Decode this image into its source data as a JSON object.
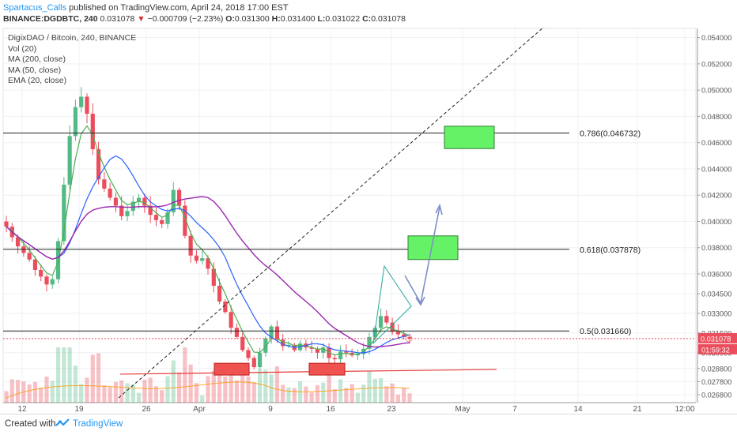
{
  "header": {
    "author": "Spartacus_Calls",
    "published": "published on TradingView.com, April 24, 2018 17:00 EST",
    "symbol": "BINANCE:DGDBTC, 240",
    "last": "0.031078",
    "change": "−0.000709 (−2.23%)",
    "o_label": "O:",
    "o": "0.031300",
    "h_label": "H:",
    "h": "0.031400",
    "l_label": "L:",
    "l": "0.031022",
    "c_label": "C:",
    "c": "0.031078"
  },
  "legend": {
    "title": "DigixDAO / Bitcoin, 240, BINANCE",
    "items": [
      "Vol (20)",
      "MA (200, close)",
      "MA (50, close)",
      "EMA (20, close)"
    ]
  },
  "footer": {
    "created_with": "Created with",
    "brand": "TradingView"
  },
  "colors": {
    "up": "#53b987",
    "down": "#eb4d5c",
    "ma200": "#9c27b0",
    "ma50": "#2962ff",
    "ema20": "#4caf50",
    "vol_ma": "#ff9800",
    "green_box": "#66f266",
    "red_box": "#ef5350",
    "arrow": "#7e8fc9"
  },
  "chart_data": {
    "type": "candlestick",
    "ylim": [
      0.0262,
      0.0547
    ],
    "x_tick_labels": [
      "12",
      "19",
      "26",
      "Apr",
      "9",
      "16",
      "23",
      "May",
      "7",
      "14",
      "21",
      "12:00"
    ],
    "y_tick_labels": [
      "0.054000",
      "0.052000",
      "0.050000",
      "0.048000",
      "0.046000",
      "0.044000",
      "0.042000",
      "0.040000",
      "0.038000",
      "0.036000",
      "0.034500",
      "0.033000",
      "0.031500",
      "0.030000",
      "0.028800",
      "0.027800",
      "0.026800"
    ],
    "current_price_label": "0.031078",
    "countdown_label": "01:59:32",
    "fib_levels": [
      {
        "label": "0.786(0.046732)",
        "value": 0.046732
      },
      {
        "label": "0.618(0.037878)",
        "value": 0.037878
      },
      {
        "label": "0.5(0.031660)",
        "value": 0.03166
      }
    ],
    "close_series": [
      0.0396,
      0.0388,
      0.0381,
      0.0376,
      0.0371,
      0.0363,
      0.0358,
      0.0352,
      0.0356,
      0.0385,
      0.0428,
      0.0465,
      0.0487,
      0.0495,
      0.0482,
      0.0455,
      0.0432,
      0.0425,
      0.0418,
      0.0412,
      0.0404,
      0.0408,
      0.0415,
      0.0418,
      0.0412,
      0.0405,
      0.0401,
      0.0398,
      0.0407,
      0.0424,
      0.0412,
      0.0389,
      0.0374,
      0.037,
      0.0372,
      0.0364,
      0.0351,
      0.0339,
      0.0331,
      0.0319,
      0.0312,
      0.0302,
      0.0296,
      0.0289,
      0.03,
      0.0311,
      0.032,
      0.031,
      0.0305,
      0.0306,
      0.0302,
      0.0307,
      0.0304,
      0.0303,
      0.03,
      0.0304,
      0.0296,
      0.0295,
      0.0301,
      0.03,
      0.0298,
      0.0299,
      0.0303,
      0.0312,
      0.0319,
      0.0328,
      0.0323,
      0.0316,
      0.0314,
      0.0312,
      0.03108
    ]
  }
}
